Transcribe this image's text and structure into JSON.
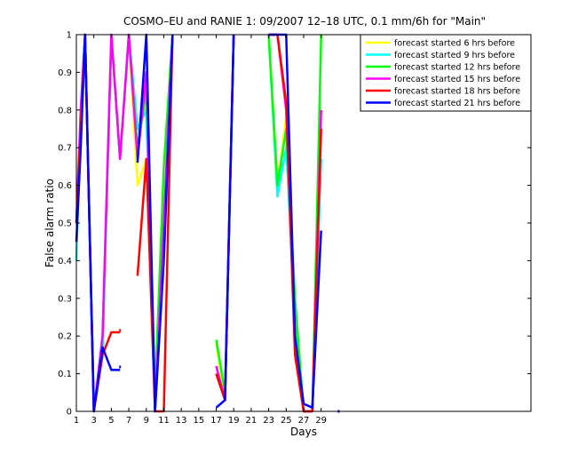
{
  "chart_data": {
    "type": "line",
    "title": "COSMO–EU and RANIE 1: 09/2007 12–18 UTC, 0.1 mm/6h for \"Main\"",
    "xlabel": "Days",
    "ylabel": "False alarm ratio",
    "xlim": [
      1,
      53
    ],
    "ylim": [
      0,
      1
    ],
    "xticks": [
      1,
      3,
      5,
      7,
      9,
      11,
      13,
      15,
      17,
      19,
      21,
      23,
      25,
      27,
      29
    ],
    "yticks": [
      0,
      0.1,
      0.2,
      0.3,
      0.4,
      0.5,
      0.6,
      0.7,
      0.8,
      0.9,
      1
    ],
    "ytick_labels": [
      "0",
      "0.1",
      "0.2",
      "0.3",
      "0.4",
      "0.5",
      "0.6",
      "0.7",
      "0.8",
      "0.9",
      "1"
    ],
    "legend_position": "top-right",
    "series": [
      {
        "name": "forecast started 6 hrs before",
        "color": "#ffff00",
        "x": [
          1,
          1.5,
          2,
          3,
          4,
          5,
          6,
          7,
          8,
          9,
          10,
          11,
          12,
          null,
          17,
          18,
          19,
          null,
          23,
          24,
          25,
          26,
          27,
          28,
          29
        ],
        "y": [
          0.5,
          0.7,
          1.0,
          0.0,
          0.18,
          1.0,
          0.67,
          1.0,
          0.6,
          0.67,
          0.0,
          0.6,
          1.0,
          null,
          0.18,
          0.03,
          1.0,
          null,
          1.0,
          0.6,
          0.78,
          0.2,
          0.0,
          0.0,
          0.8
        ]
      },
      {
        "name": "forecast started 9 hrs before",
        "color": "#00ffff",
        "x": [
          1,
          1.5,
          2,
          3,
          4,
          5,
          6,
          7,
          8,
          9,
          10,
          11,
          12,
          null,
          17,
          18,
          19,
          null,
          23,
          24,
          25,
          26,
          27,
          28,
          29
        ],
        "y": [
          0.4,
          0.8,
          1.0,
          0.02,
          0.15,
          1.0,
          0.67,
          1.0,
          0.75,
          0.8,
          0.0,
          0.45,
          1.0,
          null,
          0.1,
          0.03,
          1.0,
          null,
          1.0,
          0.57,
          0.7,
          0.25,
          0.0,
          0.0,
          0.67
        ]
      },
      {
        "name": "forecast started 12 hrs before",
        "color": "#00ff00",
        "x": [
          1,
          1.5,
          2,
          3,
          4,
          5,
          6,
          7,
          8,
          9,
          10,
          11,
          12,
          null,
          17,
          18,
          19,
          null,
          23,
          24,
          25,
          26,
          27,
          28,
          29
        ],
        "y": [
          0.5,
          0.75,
          1.0,
          0.0,
          0.2,
          1.0,
          0.67,
          1.0,
          0.7,
          0.85,
          0.05,
          0.65,
          1.0,
          null,
          0.19,
          0.05,
          1.0,
          null,
          1.0,
          0.6,
          0.75,
          0.3,
          0.0,
          0.0,
          1.0
        ]
      },
      {
        "name": "forecast started 15 hrs before",
        "color": "#ff00ff",
        "x": [
          1,
          1.5,
          2,
          3,
          4,
          5,
          6,
          7,
          8,
          9,
          10,
          11,
          12,
          null,
          17,
          18,
          19,
          null,
          23,
          24,
          25,
          26,
          27,
          28,
          29
        ],
        "y": [
          0.5,
          0.8,
          1.0,
          0.0,
          0.2,
          1.0,
          0.67,
          1.0,
          0.67,
          0.9,
          0.0,
          0.5,
          1.0,
          null,
          0.12,
          0.03,
          1.0,
          null,
          1.0,
          1.0,
          0.8,
          0.2,
          0.0,
          0.0,
          0.8
        ]
      },
      {
        "name": "forecast started 18 hrs before",
        "color": "#ff0000",
        "x": [
          1,
          1.5,
          2,
          3,
          4,
          5,
          6,
          7,
          8,
          9,
          10,
          11,
          12,
          null,
          17,
          18,
          19,
          null,
          23,
          24,
          25,
          26,
          27,
          28,
          29
        ],
        "y": [
          0.5,
          0.75,
          1.0,
          0.0,
          0.15,
          0.21,
          0.21,
          null,
          0.36,
          0.67,
          0.0,
          0.0,
          1.0,
          null,
          0.1,
          0.03,
          1.0,
          null,
          1.0,
          1.0,
          0.82,
          0.15,
          0.0,
          0.0,
          0.75
        ]
      },
      {
        "name": "forecast started 21 hrs before",
        "color": "#0000ff",
        "x": [
          1,
          1.5,
          2,
          3,
          4,
          5,
          6,
          7,
          8,
          9,
          10,
          11,
          12,
          null,
          17,
          18,
          19,
          null,
          23,
          24,
          25,
          26,
          27,
          28,
          29
        ],
        "y": [
          0.45,
          0.7,
          1.0,
          0.0,
          0.17,
          0.11,
          0.11,
          null,
          0.66,
          1.0,
          0.0,
          0.4,
          1.0,
          null,
          0.01,
          0.03,
          1.0,
          null,
          1.0,
          1.0,
          1.0,
          0.2,
          0.02,
          0.01,
          0.48
        ]
      }
    ],
    "isolated_points": [
      {
        "series": "forecast started 18 hrs before",
        "x": 6,
        "y": 0.215
      },
      {
        "series": "forecast started 21 hrs before",
        "x": 6,
        "y": 0.118
      },
      {
        "series": "forecast started 21 hrs before",
        "x": 31,
        "y": 0.0
      }
    ]
  }
}
